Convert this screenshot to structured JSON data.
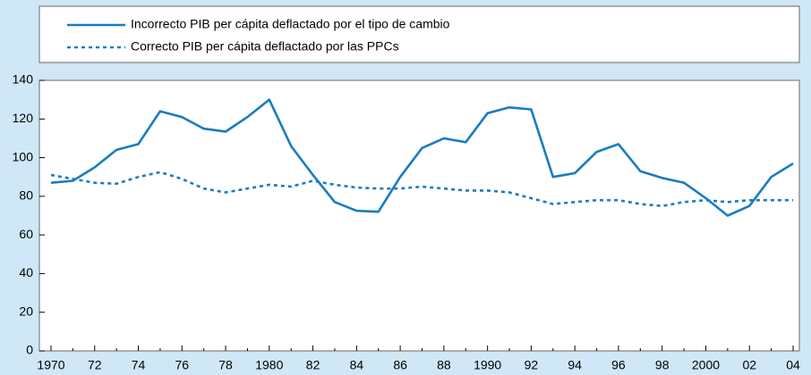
{
  "chart_data": {
    "type": "line",
    "x": [
      1970,
      1971,
      1972,
      1973,
      1974,
      1975,
      1976,
      1977,
      1978,
      1979,
      1980,
      1981,
      1982,
      1983,
      1984,
      1985,
      1986,
      1987,
      1988,
      1989,
      1990,
      1991,
      1992,
      1993,
      1994,
      1995,
      1996,
      1997,
      1998,
      1999,
      2000,
      2001,
      2002,
      2003,
      2004
    ],
    "series": [
      {
        "name": "Incorrecto PIB per cápita deflactado por el tipo de cambio",
        "color": "#1a7cc0",
        "dashed": false,
        "values": [
          87,
          88,
          95,
          104,
          107,
          124,
          121,
          115,
          113.5,
          121,
          130,
          106,
          91,
          77,
          72.5,
          72,
          90,
          105,
          110,
          108,
          123,
          126,
          125,
          90,
          92,
          103,
          107,
          93,
          89.5,
          87,
          79,
          70,
          75,
          90,
          97
        ]
      },
      {
        "name": "Correcto PIB per cápita deflactado por las PPCs",
        "color": "#1a7cc0",
        "dashed": true,
        "values": [
          91,
          89,
          87,
          86.5,
          90,
          92.5,
          89,
          84,
          82,
          84,
          86,
          85,
          88,
          86,
          84.5,
          84,
          84,
          85,
          84,
          83,
          83,
          82,
          79,
          76,
          77,
          78,
          78,
          76,
          75,
          77,
          78,
          77,
          78,
          78,
          78
        ]
      }
    ],
    "xlim": [
      1970,
      2004
    ],
    "xticks": [
      {
        "value": 1970,
        "label": "1970"
      },
      {
        "value": 1972,
        "label": "72"
      },
      {
        "value": 1974,
        "label": "74"
      },
      {
        "value": 1976,
        "label": "76"
      },
      {
        "value": 1978,
        "label": "78"
      },
      {
        "value": 1980,
        "label": "1980"
      },
      {
        "value": 1982,
        "label": "82"
      },
      {
        "value": 1984,
        "label": "84"
      },
      {
        "value": 1986,
        "label": "86"
      },
      {
        "value": 1988,
        "label": "88"
      },
      {
        "value": 1990,
        "label": "1990"
      },
      {
        "value": 1992,
        "label": "92"
      },
      {
        "value": 1994,
        "label": "94"
      },
      {
        "value": 1996,
        "label": "96"
      },
      {
        "value": 1998,
        "label": "98"
      },
      {
        "value": 2000,
        "label": "2000"
      },
      {
        "value": 2002,
        "label": "02"
      },
      {
        "value": 2004,
        "label": "04"
      }
    ],
    "ylim": [
      0,
      140
    ],
    "yticks": [
      0,
      20,
      40,
      60,
      80,
      100,
      120,
      140
    ]
  }
}
